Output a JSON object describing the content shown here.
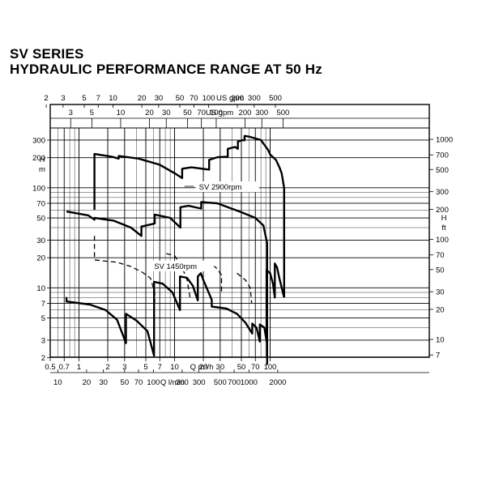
{
  "header": {
    "title": "SV SERIES",
    "subtitle": "HYDRAULIC PERFORMANCE RANGE AT 50 Hz"
  },
  "chart_data": {
    "type": "line",
    "title": "HYDRAULIC PERFORMANCE RANGE AT 50 Hz",
    "x_scale": "log",
    "y_scale": "log",
    "x_axis_primary": {
      "label": "Q m³/h",
      "range": [
        0.5,
        140
      ],
      "ticks": [
        0.5,
        0.7,
        1,
        2,
        3,
        5,
        7,
        10,
        20,
        30,
        50,
        70,
        100
      ],
      "tick_labels": [
        "0.5",
        "0.7",
        "1",
        "2",
        "3",
        "5",
        "7",
        "10",
        "20",
        "30",
        "50",
        "70",
        "100"
      ]
    },
    "x_axis_lpm": {
      "label": "Q l/min",
      "ticks": [
        10,
        20,
        30,
        50,
        70,
        100,
        200,
        300,
        500,
        700,
        1000,
        2000
      ],
      "tick_labels": [
        "10",
        "20",
        "30",
        "50",
        "70",
        "100",
        "200",
        "300",
        "500",
        "700",
        "1000",
        "2000"
      ]
    },
    "x_axis_us_gpm": {
      "label": "US gpm",
      "ticks": [
        2,
        3,
        5,
        7,
        10,
        20,
        30,
        50,
        70,
        100,
        200,
        300,
        500
      ],
      "tick_labels": [
        "2",
        "3",
        "5",
        "7",
        "10",
        "20",
        "30",
        "50",
        "70",
        "100",
        "200",
        "300",
        "500"
      ]
    },
    "x_axis_uk_gpm": {
      "label": "US gpm",
      "ticks": [
        3,
        5,
        10,
        20,
        30,
        50,
        70,
        100,
        200,
        300,
        500
      ],
      "tick_labels": [
        "3",
        "5",
        "10",
        "20",
        "30",
        "50",
        "70",
        "100",
        "200",
        "300",
        "500"
      ]
    },
    "y_axis_left": {
      "label": "H m",
      "range": [
        2,
        400
      ],
      "ticks": [
        2,
        3,
        5,
        7,
        10,
        20,
        30,
        50,
        70,
        100,
        200,
        300
      ],
      "tick_labels": [
        "2",
        "3",
        "5",
        "7",
        "10",
        "20",
        "30",
        "50",
        "70",
        "100",
        "200",
        "300"
      ]
    },
    "y_axis_right": {
      "label": "H ft",
      "ticks": [
        7,
        10,
        20,
        30,
        50,
        70,
        100,
        200,
        300,
        500,
        700,
        1000
      ],
      "tick_labels": [
        "7",
        "10",
        "20",
        "30",
        "50",
        "70",
        "100",
        "200",
        "300",
        "500",
        "700",
        "1000"
      ]
    },
    "annotations": [
      "SV  2900rpm",
      "SV  1450rpm"
    ],
    "series": [
      {
        "name": "SV  2900rpm",
        "style": "solid",
        "points": [
          [
            1.45,
            60
          ],
          [
            1.45,
            218
          ],
          [
            2.2,
            205
          ],
          [
            2.6,
            196
          ],
          [
            2.6,
            208
          ],
          [
            4.2,
            196
          ],
          [
            7.0,
            170
          ],
          [
            10.0,
            140
          ],
          [
            12.0,
            125
          ],
          [
            12.0,
            155
          ],
          [
            15.0,
            160
          ],
          [
            23.0,
            152
          ],
          [
            23.0,
            190
          ],
          [
            28.0,
            202
          ],
          [
            36.0,
            205
          ],
          [
            36.0,
            245
          ],
          [
            43.0,
            256
          ],
          [
            46.0,
            245
          ],
          [
            46.0,
            290
          ],
          [
            52.0,
            300
          ],
          [
            54.0,
            298
          ],
          [
            54.0,
            330
          ],
          [
            60.0,
            325
          ],
          [
            80.0,
            300
          ],
          [
            95.0,
            240
          ],
          [
            100.0,
            215
          ],
          [
            115.0,
            190
          ],
          [
            125.0,
            160
          ],
          [
            132.0,
            140
          ],
          [
            140.0,
            100
          ],
          [
            140.0,
            8
          ]
        ]
      },
      {
        "name": "SV  2900rpm",
        "style": "solid",
        "points": [
          [
            0.74,
            58
          ],
          [
            1.25,
            53
          ],
          [
            1.45,
            48
          ],
          [
            1.45,
            50
          ],
          [
            2.3,
            47
          ],
          [
            3.5,
            40
          ],
          [
            4.5,
            33
          ],
          [
            4.5,
            41
          ],
          [
            6.2,
            44
          ],
          [
            6.2,
            54
          ],
          [
            9.0,
            50
          ],
          [
            11.5,
            40
          ],
          [
            11.5,
            64
          ],
          [
            14.0,
            66
          ],
          [
            19.0,
            62
          ],
          [
            19.0,
            72
          ],
          [
            28.0,
            70
          ],
          [
            33.0,
            66
          ],
          [
            50.0,
            57
          ],
          [
            70.0,
            50
          ],
          [
            85.0,
            42
          ],
          [
            93.0,
            28
          ],
          [
            93.0,
            1.7
          ]
        ]
      },
      {
        "name": "SV  1450rpm",
        "style": "solid",
        "points": [
          [
            0.74,
            8.1
          ],
          [
            0.74,
            7.3
          ],
          [
            1.3,
            6.8
          ],
          [
            1.9,
            6.0
          ],
          [
            2.5,
            4.8
          ],
          [
            3.1,
            2.8
          ],
          [
            3.1,
            5.5
          ],
          [
            4.0,
            4.7
          ],
          [
            5.2,
            3.7
          ],
          [
            6.1,
            2.1
          ],
          [
            6.1,
            11.5
          ],
          [
            7.5,
            11.0
          ],
          [
            9.5,
            9.0
          ],
          [
            11.4,
            6.0
          ],
          [
            11.4,
            13.0
          ],
          [
            13.5,
            12.6
          ],
          [
            15.5,
            10.5
          ],
          [
            17.5,
            7.5
          ],
          [
            17.5,
            13.0
          ],
          [
            18.8,
            14.0
          ],
          [
            20.0,
            12.0
          ],
          [
            24.5,
            7.6
          ],
          [
            24.5,
            6.5
          ],
          [
            35.0,
            6.2
          ],
          [
            45.0,
            5.5
          ],
          [
            55.0,
            4.5
          ],
          [
            65.0,
            3.5
          ],
          [
            65.0,
            4.4
          ],
          [
            72.0,
            4.0
          ],
          [
            78.0,
            2.9
          ],
          [
            78.0,
            4.3
          ],
          [
            87.0,
            4.0
          ],
          [
            92.0,
            2.9
          ],
          [
            92.0,
            15.0
          ],
          [
            100.0,
            14.0
          ],
          [
            107.0,
            11.0
          ],
          [
            112.0,
            8.0
          ],
          [
            112.0,
            17.5
          ],
          [
            118.0,
            16.0
          ],
          [
            126.0,
            12.0
          ],
          [
            140.0,
            8.0
          ]
        ]
      },
      {
        "name": "SV  1450rpm",
        "style": "dashed",
        "points": [
          [
            1.45,
            33
          ],
          [
            1.45,
            19
          ],
          [
            2.5,
            18
          ],
          [
            3.4,
            16.5
          ],
          [
            4.5,
            14.5
          ],
          [
            5.6,
            12.5
          ],
          [
            6.2,
            9.0
          ],
          [
            6.2,
            7.0
          ]
        ]
      }
    ]
  }
}
